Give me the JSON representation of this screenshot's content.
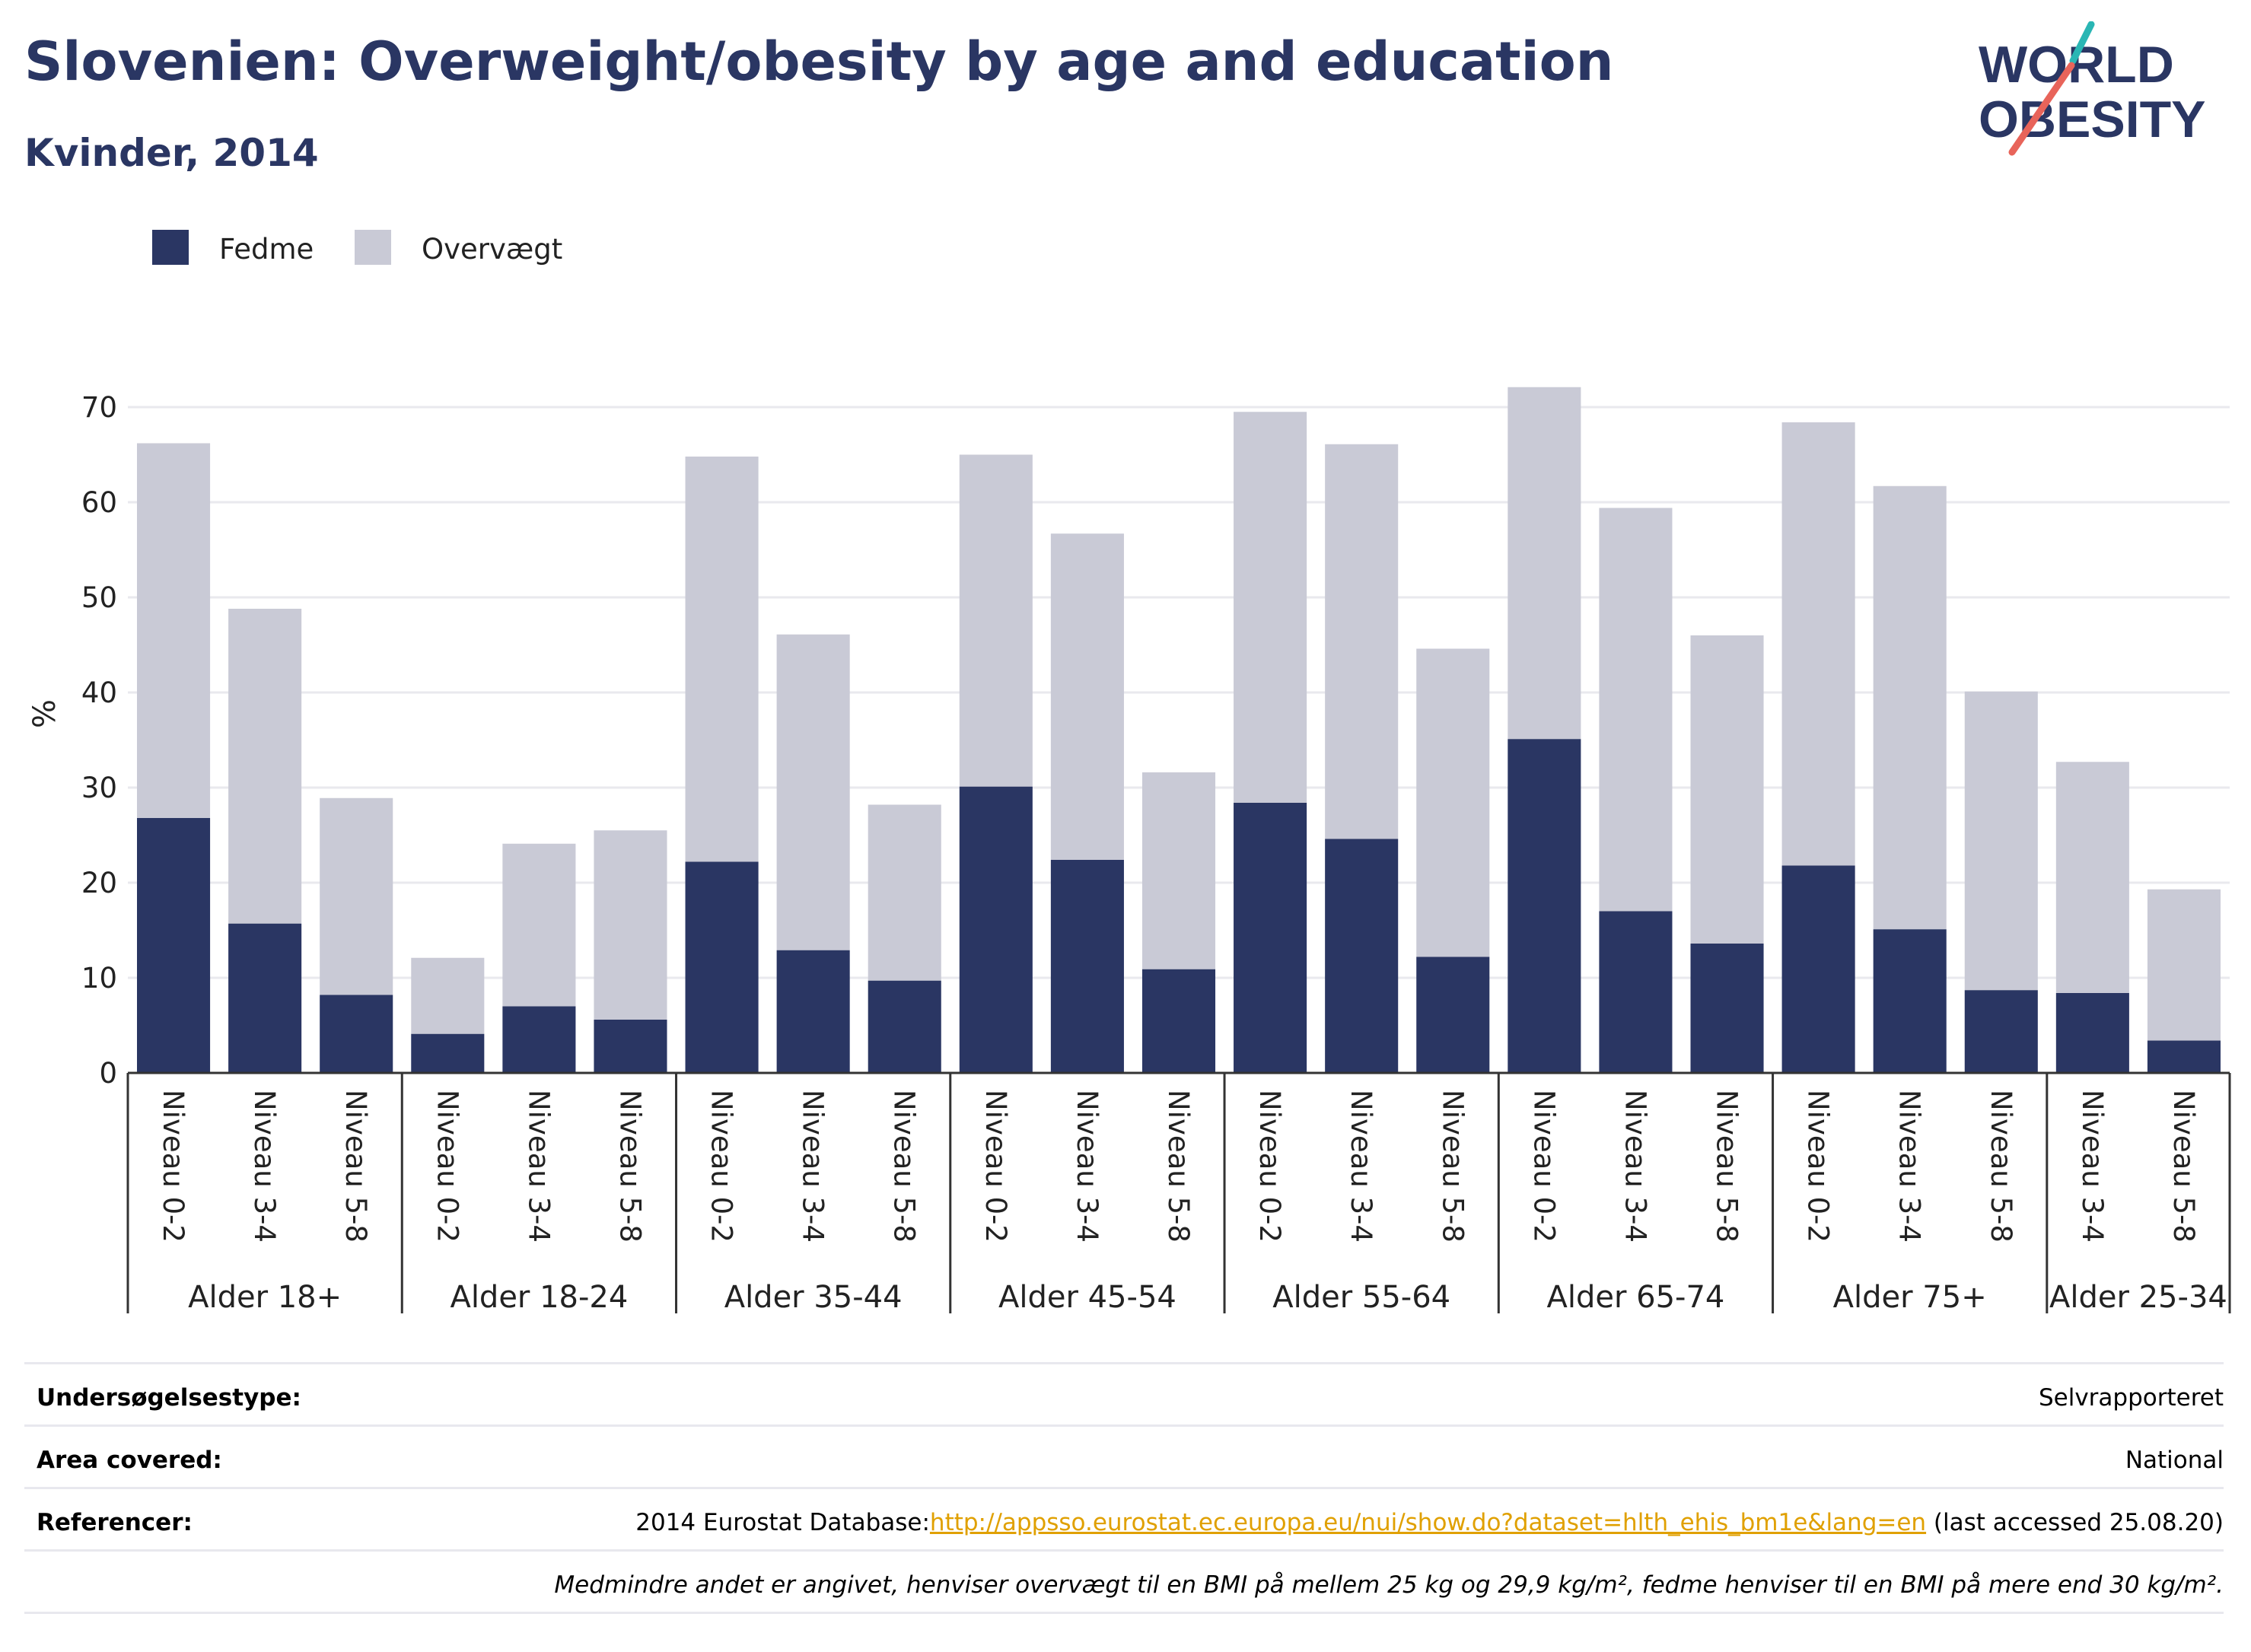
{
  "header": {
    "title": "Slovenien: Overweight/obesity by age and education",
    "subtitle": "Kvinder, 2014"
  },
  "logo": {
    "line1": "WORLD",
    "line2": "OBESITY",
    "accent_teal": "#2ab6b4",
    "accent_red": "#e8645a"
  },
  "colors": {
    "obese": "#2a3663",
    "overweight": "#c9cad6",
    "grid": "#e9e9ee",
    "axis": "#333333"
  },
  "chart_data": {
    "type": "bar",
    "stacked": true,
    "ylabel": "%",
    "ylim": [
      0,
      72
    ],
    "yticks": [
      0,
      10,
      20,
      30,
      40,
      50,
      60,
      70
    ],
    "legend": {
      "placement": "top-left",
      "entries": [
        "Fedme",
        "Overvægt"
      ]
    },
    "grid": true,
    "groups": [
      {
        "label": "Alder 18+",
        "categories": [
          "Niveau 0-2",
          "Niveau 3-4",
          "Niveau 5-8"
        ],
        "fedme": [
          26.8,
          15.7,
          8.2
        ],
        "total": [
          66.2,
          48.8,
          28.9
        ]
      },
      {
        "label": "Alder 18-24",
        "categories": [
          "Niveau 0-2",
          "Niveau 3-4",
          "Niveau 5-8"
        ],
        "fedme": [
          4.1,
          7.0,
          5.6
        ],
        "total": [
          12.1,
          24.1,
          25.5
        ]
      },
      {
        "label": "Alder 35-44",
        "categories": [
          "Niveau 0-2",
          "Niveau 3-4",
          "Niveau 5-8"
        ],
        "fedme": [
          22.2,
          12.9,
          9.7
        ],
        "total": [
          64.8,
          46.1,
          28.2
        ]
      },
      {
        "label": "Alder 45-54",
        "categories": [
          "Niveau 0-2",
          "Niveau 3-4",
          "Niveau 5-8"
        ],
        "fedme": [
          30.1,
          22.4,
          10.9
        ],
        "total": [
          65.0,
          56.7,
          31.6
        ]
      },
      {
        "label": "Alder 55-64",
        "categories": [
          "Niveau 0-2",
          "Niveau 3-4",
          "Niveau 5-8"
        ],
        "fedme": [
          28.4,
          24.6,
          12.2
        ],
        "total": [
          69.5,
          66.1,
          44.6
        ]
      },
      {
        "label": "Alder 65-74",
        "categories": [
          "Niveau 0-2",
          "Niveau 3-4",
          "Niveau 5-8"
        ],
        "fedme": [
          35.1,
          17.0,
          13.6
        ],
        "total": [
          72.1,
          59.4,
          46.0
        ]
      },
      {
        "label": "Alder 75+",
        "categories": [
          "Niveau 0-2",
          "Niveau 3-4",
          "Niveau 5-8"
        ],
        "fedme": [
          21.8,
          15.1,
          8.7
        ],
        "total": [
          68.4,
          61.7,
          40.1
        ]
      },
      {
        "label": "Alder 25-34",
        "categories": [
          "Niveau 3-4",
          "Niveau 5-8"
        ],
        "fedme": [
          8.4,
          3.4
        ],
        "total": [
          32.7,
          19.3
        ]
      }
    ]
  },
  "info": {
    "survey_label": "Undersøgelsestype:",
    "survey_value": "Selvrapporteret",
    "area_label": "Area covered:",
    "area_value": "National",
    "ref_label": "Referencer:",
    "ref_prefix": "2014 Eurostat Database:",
    "ref_link": "http://appsso.eurostat.ec.europa.eu/nui/show.do?dataset=hlth_ehis_bm1e&lang=en",
    "ref_suffix": " (last accessed 25.08.20)",
    "note": "Medmindre andet er angivet, henviser overvægt til en BMI på mellem 25 kg og 29,9 kg/m², fedme henviser til en BMI på mere end 30 kg/m²."
  }
}
